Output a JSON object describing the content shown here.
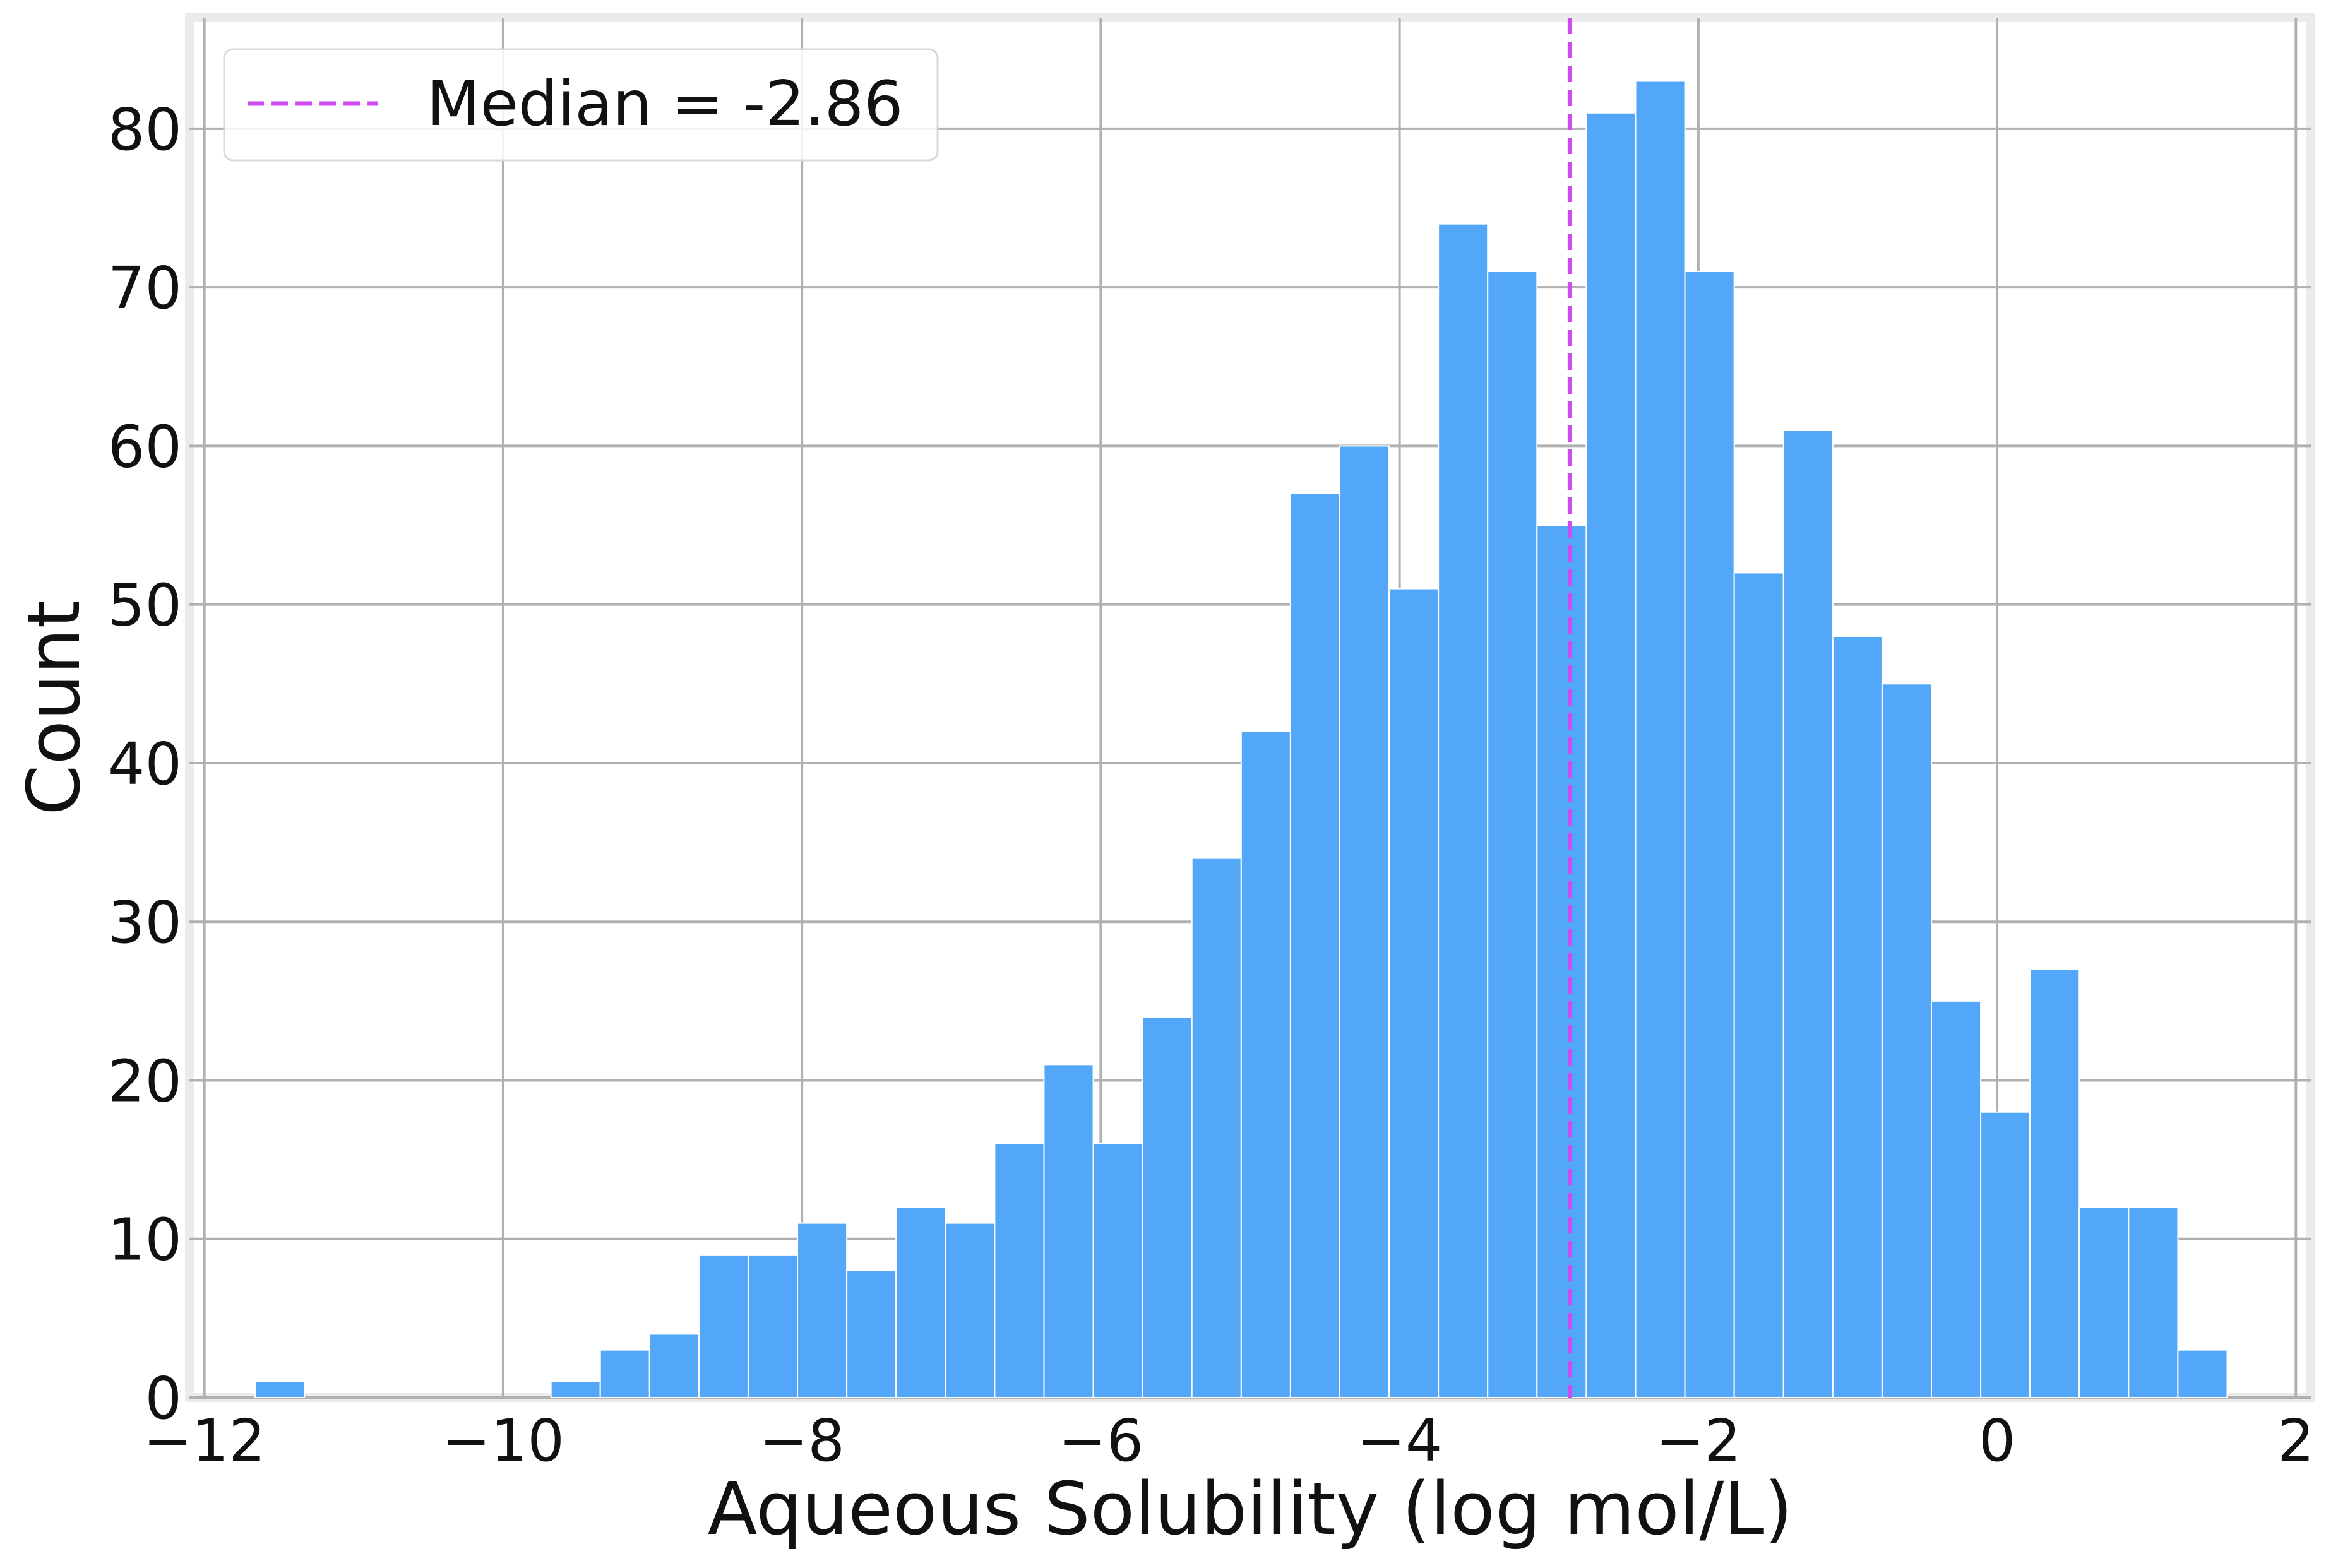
{
  "chart_data": {
    "type": "bar",
    "title": "",
    "xlabel": "Aqueous Solubility (log mol/L)",
    "ylabel": "Count",
    "xlim": [
      -12.1,
      2.1
    ],
    "ylim": [
      0,
      87
    ],
    "grid": true,
    "x_ticks": [
      -12,
      -10,
      -8,
      -6,
      -4,
      -2,
      0,
      2
    ],
    "x_tick_labels": [
      "−12",
      "−10",
      "−8",
      "−6",
      "−4",
      "−2",
      "0",
      "2"
    ],
    "y_ticks": [
      0,
      10,
      20,
      30,
      40,
      50,
      60,
      70,
      80
    ],
    "y_tick_labels": [
      "0",
      "10",
      "20",
      "30",
      "40",
      "50",
      "60",
      "70",
      "80"
    ],
    "bins": {
      "edges": [
        -11.66,
        -11.33,
        -11.0,
        -10.67,
        -10.34,
        -10.01,
        -9.68,
        -9.35,
        -9.02,
        -8.69,
        -8.36,
        -8.03,
        -7.7,
        -7.37,
        -7.04,
        -6.71,
        -6.38,
        -6.05,
        -5.72,
        -5.39,
        -5.06,
        -4.73,
        -4.4,
        -4.07,
        -3.74,
        -3.41,
        -3.08,
        -2.75,
        -2.42,
        -2.09,
        -1.76,
        -1.43,
        -1.1,
        -0.77,
        -0.44,
        -0.11,
        0.22,
        0.55,
        0.88,
        1.21,
        1.54
      ],
      "counts": [
        1,
        0,
        0,
        0,
        0,
        0,
        1,
        3,
        4,
        9,
        9,
        11,
        8,
        12,
        11,
        16,
        21,
        16,
        24,
        34,
        42,
        57,
        60,
        51,
        74,
        71,
        55,
        81,
        83,
        71,
        52,
        61,
        48,
        45,
        25,
        18,
        27,
        12,
        12,
        3
      ]
    },
    "bar_color": "#53a7f8",
    "median": {
      "value": -2.86,
      "label": "Median = -2.86",
      "color": "#cc4cf0",
      "style": "dashed"
    },
    "legend": {
      "position": "top-left"
    }
  }
}
